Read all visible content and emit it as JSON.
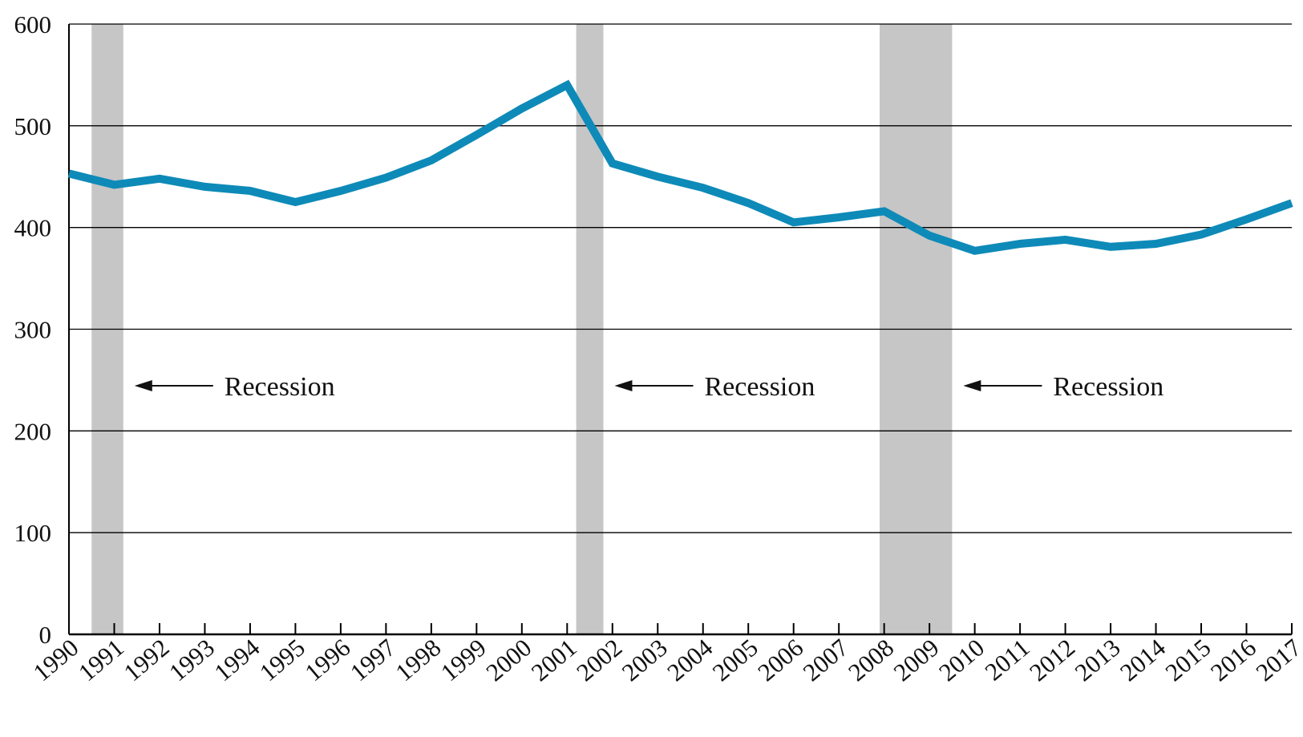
{
  "chart_data": {
    "type": "line",
    "title": "",
    "xlabel": "",
    "ylabel": "",
    "x": [
      1990,
      1991,
      1992,
      1993,
      1994,
      1995,
      1996,
      1997,
      1998,
      1999,
      2000,
      2001,
      2002,
      2003,
      2004,
      2005,
      2006,
      2007,
      2008,
      2009,
      2010,
      2011,
      2012,
      2013,
      2014,
      2015,
      2016,
      2017
    ],
    "x_tick_labels": [
      "1990",
      "1991",
      "1992",
      "1993",
      "1994",
      "1995",
      "1996",
      "1997",
      "1998",
      "1999",
      "2000",
      "2001",
      "2002",
      "2003",
      "2004",
      "2005",
      "2006",
      "2007",
      "2008",
      "2009",
      "2010",
      "2011",
      "2012",
      "2013",
      "2014",
      "2015",
      "2016",
      "2017"
    ],
    "series": [
      {
        "values": [
          453,
          442,
          448,
          440,
          436,
          425,
          436,
          449,
          466,
          491,
          517,
          540,
          463,
          450,
          439,
          424,
          405,
          410,
          416,
          392,
          377,
          384,
          388,
          381,
          384,
          393,
          408,
          424
        ],
        "color": "#0e8ab8"
      }
    ],
    "ylim": [
      0,
      600
    ],
    "y_ticks": [
      0,
      100,
      200,
      300,
      400,
      500,
      600
    ],
    "y_tick_labels": [
      "0",
      "100",
      "200",
      "300",
      "400",
      "500",
      "600"
    ],
    "grid": "horizontal",
    "legend": "none",
    "recessions": [
      {
        "start": 1990.5,
        "end": 1991.2,
        "label": "Recession"
      },
      {
        "start": 2001.2,
        "end": 2001.8,
        "label": "Recession"
      },
      {
        "start": 2007.9,
        "end": 2009.5,
        "label": "Recession"
      }
    ],
    "recession_color": "#c6c6c6"
  }
}
